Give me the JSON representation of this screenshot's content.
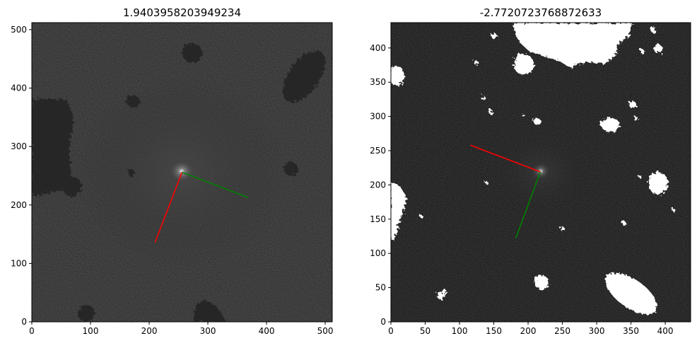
{
  "panels": [
    {
      "title": "1.9403958203949234",
      "xlim": [
        0,
        512
      ],
      "ylim": [
        0,
        512
      ],
      "xticks": [
        0,
        100,
        200,
        300,
        400,
        500
      ],
      "yticks": [
        0,
        100,
        200,
        300,
        400,
        500
      ],
      "center": [
        256,
        256
      ],
      "red_line": [
        [
          256,
          256
        ],
        [
          210,
          136
        ]
      ],
      "green_line": [
        [
          256,
          256
        ],
        [
          368,
          213
        ]
      ],
      "red_color": "#ff0000",
      "green_color": "#008000"
    },
    {
      "title": "-2.7720723768872633",
      "xlim": [
        0,
        437
      ],
      "ylim": [
        0,
        437
      ],
      "xticks": [
        0,
        50,
        100,
        150,
        200,
        250,
        300,
        350,
        400
      ],
      "yticks": [
        0,
        50,
        100,
        150,
        200,
        250,
        300,
        350,
        400
      ],
      "center": [
        218,
        219
      ],
      "red_line": [
        [
          218,
          219
        ],
        [
          116,
          258
        ]
      ],
      "green_line": [
        [
          218,
          219
        ],
        [
          182,
          122
        ]
      ],
      "red_color": "#ff0000",
      "green_color": "#008000"
    }
  ]
}
